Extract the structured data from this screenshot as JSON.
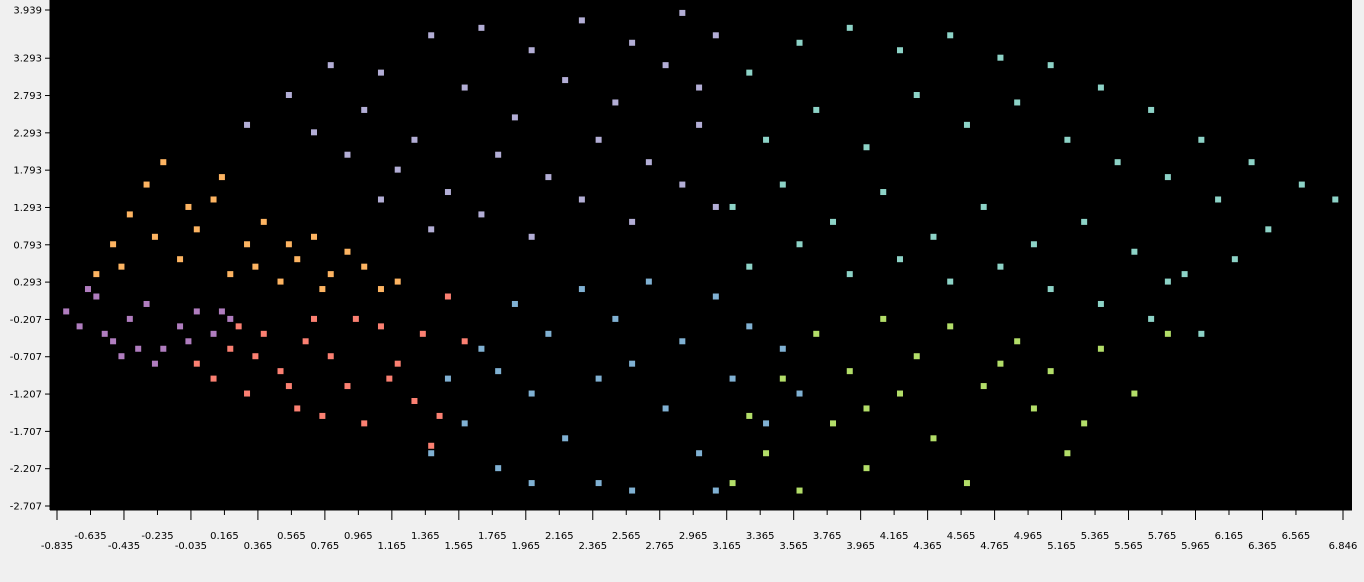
{
  "chart_data": {
    "type": "scatter",
    "title": "",
    "xlabel": "",
    "ylabel": "",
    "xlim": [
      -0.835,
      6.846
    ],
    "ylim": [
      -2.707,
      3.939
    ],
    "grid": false,
    "legend": "none",
    "background": "#000000",
    "x_ticks": [
      "-0.835",
      "-0.635",
      "-0.435",
      "-0.235",
      "-0.035",
      "0.165",
      "0.365",
      "0.565",
      "0.765",
      "0.965",
      "1.165",
      "1.365",
      "1.565",
      "1.765",
      "1.965",
      "2.165",
      "2.365",
      "2.565",
      "2.765",
      "2.965",
      "3.165",
      "3.365",
      "3.565",
      "3.765",
      "3.965",
      "4.165",
      "4.365",
      "4.565",
      "4.765",
      "4.965",
      "5.165",
      "5.365",
      "5.565",
      "5.765",
      "5.965",
      "6.165",
      "6.365",
      "6.565",
      "6.846"
    ],
    "y_ticks": [
      "-2.707",
      "-2.207",
      "-1.707",
      "-1.207",
      "-0.707",
      "-0.207",
      "0.293",
      "0.793",
      "1.293",
      "1.793",
      "2.293",
      "2.793",
      "3.293",
      "3.939"
    ],
    "series": [
      {
        "color": "#b3aed6",
        "values": [
          [
            0.3,
            2.4
          ],
          [
            0.55,
            2.8
          ],
          [
            0.8,
            3.2
          ],
          [
            1.1,
            3.1
          ],
          [
            1.4,
            3.6
          ],
          [
            1.7,
            3.7
          ],
          [
            2.0,
            3.4
          ],
          [
            2.3,
            3.8
          ],
          [
            2.6,
            3.5
          ],
          [
            2.9,
            3.9
          ],
          [
            3.1,
            3.6
          ],
          [
            0.7,
            2.3
          ],
          [
            1.0,
            2.6
          ],
          [
            1.3,
            2.2
          ],
          [
            1.6,
            2.9
          ],
          [
            1.9,
            2.5
          ],
          [
            2.2,
            3.0
          ],
          [
            2.5,
            2.7
          ],
          [
            2.8,
            3.2
          ],
          [
            3.0,
            2.9
          ],
          [
            1.2,
            1.8
          ],
          [
            1.5,
            1.5
          ],
          [
            1.8,
            2.0
          ],
          [
            2.1,
            1.7
          ],
          [
            2.4,
            2.2
          ],
          [
            2.7,
            1.9
          ],
          [
            3.0,
            2.4
          ],
          [
            1.4,
            1.0
          ],
          [
            1.7,
            1.2
          ],
          [
            2.0,
            0.9
          ],
          [
            2.3,
            1.4
          ],
          [
            2.6,
            1.1
          ],
          [
            2.9,
            1.6
          ],
          [
            3.1,
            1.3
          ],
          [
            0.9,
            2.0
          ],
          [
            1.1,
            1.4
          ]
        ]
      },
      {
        "color": "#8dd3c7",
        "values": [
          [
            3.3,
            3.1
          ],
          [
            3.6,
            3.5
          ],
          [
            3.9,
            3.7
          ],
          [
            4.2,
            3.4
          ],
          [
            4.5,
            3.6
          ],
          [
            4.8,
            3.3
          ],
          [
            5.1,
            3.2
          ],
          [
            5.4,
            2.9
          ],
          [
            5.7,
            2.6
          ],
          [
            6.0,
            2.2
          ],
          [
            6.3,
            1.9
          ],
          [
            6.6,
            1.6
          ],
          [
            6.8,
            1.4
          ],
          [
            3.4,
            2.2
          ],
          [
            3.7,
            2.6
          ],
          [
            4.0,
            2.1
          ],
          [
            4.3,
            2.8
          ],
          [
            4.6,
            2.4
          ],
          [
            4.9,
            2.7
          ],
          [
            5.2,
            2.2
          ],
          [
            5.5,
            1.9
          ],
          [
            5.8,
            1.7
          ],
          [
            6.1,
            1.4
          ],
          [
            6.4,
            1.0
          ],
          [
            3.2,
            1.3
          ],
          [
            3.5,
            1.6
          ],
          [
            3.8,
            1.1
          ],
          [
            4.1,
            1.5
          ],
          [
            4.4,
            0.9
          ],
          [
            4.7,
            1.3
          ],
          [
            5.0,
            0.8
          ],
          [
            5.3,
            1.1
          ],
          [
            5.6,
            0.7
          ],
          [
            5.9,
            0.4
          ],
          [
            6.2,
            0.6
          ],
          [
            3.3,
            0.5
          ],
          [
            3.6,
            0.8
          ],
          [
            3.9,
            0.4
          ],
          [
            4.2,
            0.6
          ],
          [
            4.5,
            0.3
          ],
          [
            4.8,
            0.5
          ],
          [
            5.1,
            0.2
          ],
          [
            5.4,
            0.0
          ],
          [
            5.7,
            -0.2
          ],
          [
            6.0,
            -0.4
          ],
          [
            5.8,
            0.3
          ]
        ]
      },
      {
        "color": "#fdb462",
        "values": [
          [
            -0.6,
            0.4
          ],
          [
            -0.5,
            0.8
          ],
          [
            -0.4,
            1.2
          ],
          [
            -0.3,
            1.6
          ],
          [
            -0.2,
            1.9
          ],
          [
            -0.1,
            0.6
          ],
          [
            0.0,
            1.0
          ],
          [
            0.1,
            1.4
          ],
          [
            0.2,
            0.4
          ],
          [
            0.3,
            0.8
          ],
          [
            0.4,
            1.1
          ],
          [
            0.5,
            0.3
          ],
          [
            0.6,
            0.6
          ],
          [
            0.7,
            0.9
          ],
          [
            0.8,
            0.4
          ],
          [
            0.9,
            0.7
          ],
          [
            1.0,
            0.5
          ],
          [
            1.1,
            0.2
          ],
          [
            1.2,
            0.3
          ],
          [
            -0.45,
            0.5
          ],
          [
            -0.25,
            0.9
          ],
          [
            -0.05,
            1.3
          ],
          [
            0.15,
            1.7
          ],
          [
            0.35,
            0.5
          ],
          [
            0.55,
            0.8
          ],
          [
            0.75,
            0.2
          ]
        ]
      },
      {
        "color": "#b07dbf",
        "values": [
          [
            -0.78,
            -0.1
          ],
          [
            -0.7,
            -0.3
          ],
          [
            -0.6,
            0.1
          ],
          [
            -0.5,
            -0.5
          ],
          [
            -0.4,
            -0.2
          ],
          [
            -0.3,
            0.0
          ],
          [
            -0.2,
            -0.6
          ],
          [
            -0.1,
            -0.3
          ],
          [
            0.0,
            -0.1
          ],
          [
            0.1,
            -0.4
          ],
          [
            0.2,
            -0.2
          ],
          [
            -0.65,
            0.2
          ],
          [
            -0.45,
            -0.7
          ],
          [
            -0.25,
            -0.8
          ],
          [
            -0.05,
            -0.5
          ],
          [
            0.15,
            -0.1
          ],
          [
            -0.55,
            -0.4
          ],
          [
            -0.35,
            -0.6
          ]
        ]
      },
      {
        "color": "#fb8072",
        "values": [
          [
            0.0,
            -0.8
          ],
          [
            0.1,
            -1.0
          ],
          [
            0.2,
            -0.6
          ],
          [
            0.3,
            -1.2
          ],
          [
            0.4,
            -0.4
          ],
          [
            0.5,
            -0.9
          ],
          [
            0.6,
            -1.4
          ],
          [
            0.7,
            -0.2
          ],
          [
            0.8,
            -0.7
          ],
          [
            0.9,
            -1.1
          ],
          [
            1.0,
            -1.6
          ],
          [
            1.1,
            -0.3
          ],
          [
            1.2,
            -0.8
          ],
          [
            1.3,
            -1.3
          ],
          [
            1.4,
            -1.9
          ],
          [
            1.5,
            0.1
          ],
          [
            1.6,
            -0.5
          ],
          [
            0.35,
            -0.7
          ],
          [
            0.55,
            -1.1
          ],
          [
            0.75,
            -1.5
          ],
          [
            0.95,
            -0.2
          ],
          [
            1.15,
            -1.0
          ],
          [
            1.35,
            -0.4
          ],
          [
            1.45,
            -1.5
          ],
          [
            0.25,
            -0.3
          ],
          [
            0.65,
            -0.5
          ]
        ]
      },
      {
        "color": "#80b1d3",
        "values": [
          [
            1.4,
            -2.0
          ],
          [
            1.6,
            -1.6
          ],
          [
            1.8,
            -2.2
          ],
          [
            2.0,
            -1.2
          ],
          [
            2.2,
            -1.8
          ],
          [
            2.4,
            -2.4
          ],
          [
            2.6,
            -0.8
          ],
          [
            2.8,
            -1.4
          ],
          [
            3.0,
            -2.0
          ],
          [
            3.2,
            -1.0
          ],
          [
            3.4,
            -1.6
          ],
          [
            1.7,
            -0.6
          ],
          [
            1.9,
            0.0
          ],
          [
            2.1,
            -0.4
          ],
          [
            2.3,
            0.2
          ],
          [
            2.5,
            -0.2
          ],
          [
            2.7,
            0.3
          ],
          [
            2.9,
            -0.5
          ],
          [
            3.1,
            0.1
          ],
          [
            3.3,
            -0.3
          ],
          [
            3.5,
            -0.6
          ],
          [
            3.6,
            -1.2
          ],
          [
            1.5,
            -1.0
          ],
          [
            2.0,
            -2.4
          ],
          [
            2.6,
            -2.5
          ],
          [
            3.1,
            -2.5
          ],
          [
            1.8,
            -0.9
          ],
          [
            2.4,
            -1.0
          ]
        ]
      },
      {
        "color": "#b3de69",
        "values": [
          [
            3.2,
            -2.4
          ],
          [
            3.4,
            -2.0
          ],
          [
            3.6,
            -2.5
          ],
          [
            3.8,
            -1.6
          ],
          [
            4.0,
            -2.2
          ],
          [
            4.2,
            -1.2
          ],
          [
            4.4,
            -1.8
          ],
          [
            4.6,
            -2.4
          ],
          [
            4.8,
            -0.8
          ],
          [
            5.0,
            -1.4
          ],
          [
            5.2,
            -2.0
          ],
          [
            5.4,
            -0.6
          ],
          [
            5.6,
            -1.2
          ],
          [
            5.8,
            -0.4
          ],
          [
            3.5,
            -1.0
          ],
          [
            3.7,
            -0.4
          ],
          [
            3.9,
            -0.9
          ],
          [
            4.1,
            -0.2
          ],
          [
            4.3,
            -0.7
          ],
          [
            4.5,
            -0.3
          ],
          [
            4.7,
            -1.1
          ],
          [
            4.9,
            -0.5
          ],
          [
            5.1,
            -0.9
          ],
          [
            5.3,
            -1.6
          ],
          [
            3.3,
            -1.5
          ],
          [
            4.0,
            -1.4
          ]
        ]
      }
    ]
  }
}
